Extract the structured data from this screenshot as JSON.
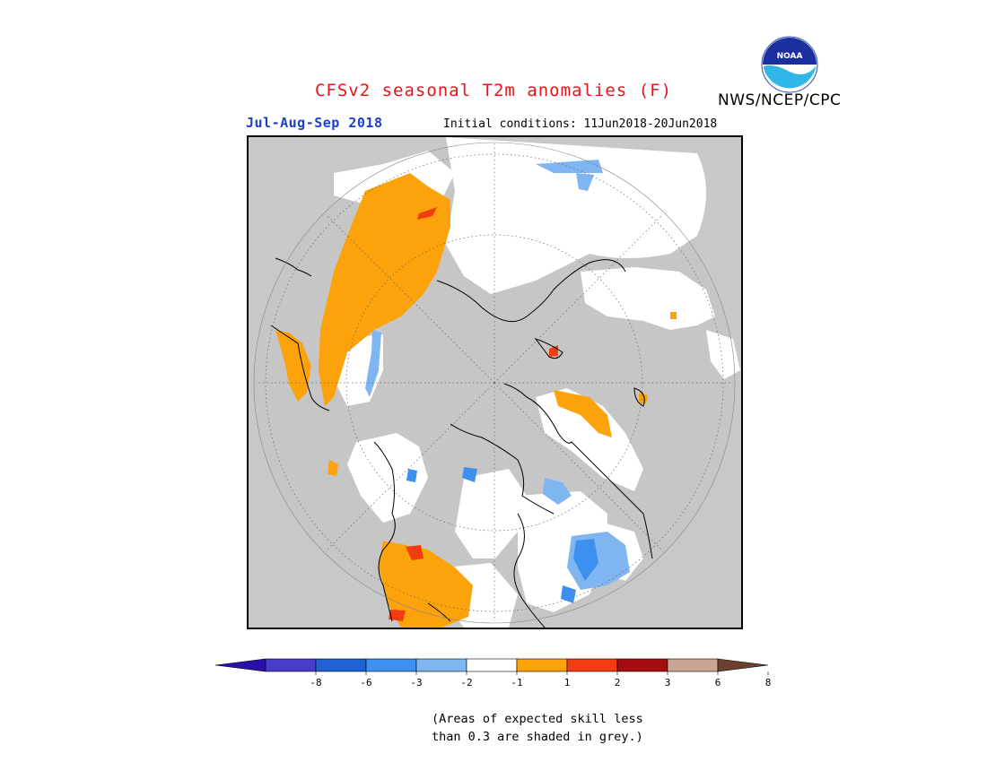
{
  "header": {
    "title": "CFSv2 seasonal T2m anomalies (F)",
    "organization": "NWS/NCEP/CPC",
    "logo_text": "NOAA",
    "period": "Jul-Aug-Sep 2018",
    "initial_conditions": "Initial conditions: 11Jun2018-20Jun2018"
  },
  "map": {
    "projection": "north-polar-stereographic",
    "land_color": "#c8c8c8",
    "ocean_color": "#ffffff",
    "coast_color": "#000000"
  },
  "legend": {
    "bins": [
      {
        "color": "#2a0fa8"
      },
      {
        "color": "#4a3ccb"
      },
      {
        "color": "#1f62d4"
      },
      {
        "color": "#3d8ff0"
      },
      {
        "color": "#7fb6f2"
      },
      {
        "color": "#ffffff"
      },
      {
        "color": "#fca20a"
      },
      {
        "color": "#f23d10"
      },
      {
        "color": "#a50d12"
      },
      {
        "color": "#c9a594"
      },
      {
        "color": "#6b4031"
      }
    ],
    "tick_labels": [
      "-8",
      "-6",
      "-3",
      "-2",
      "-1",
      "1",
      "2",
      "3",
      "6",
      "8"
    ]
  },
  "note": {
    "line1": "(Areas of expected skill less",
    "line2": "than 0.3 are shaded in grey.)"
  }
}
